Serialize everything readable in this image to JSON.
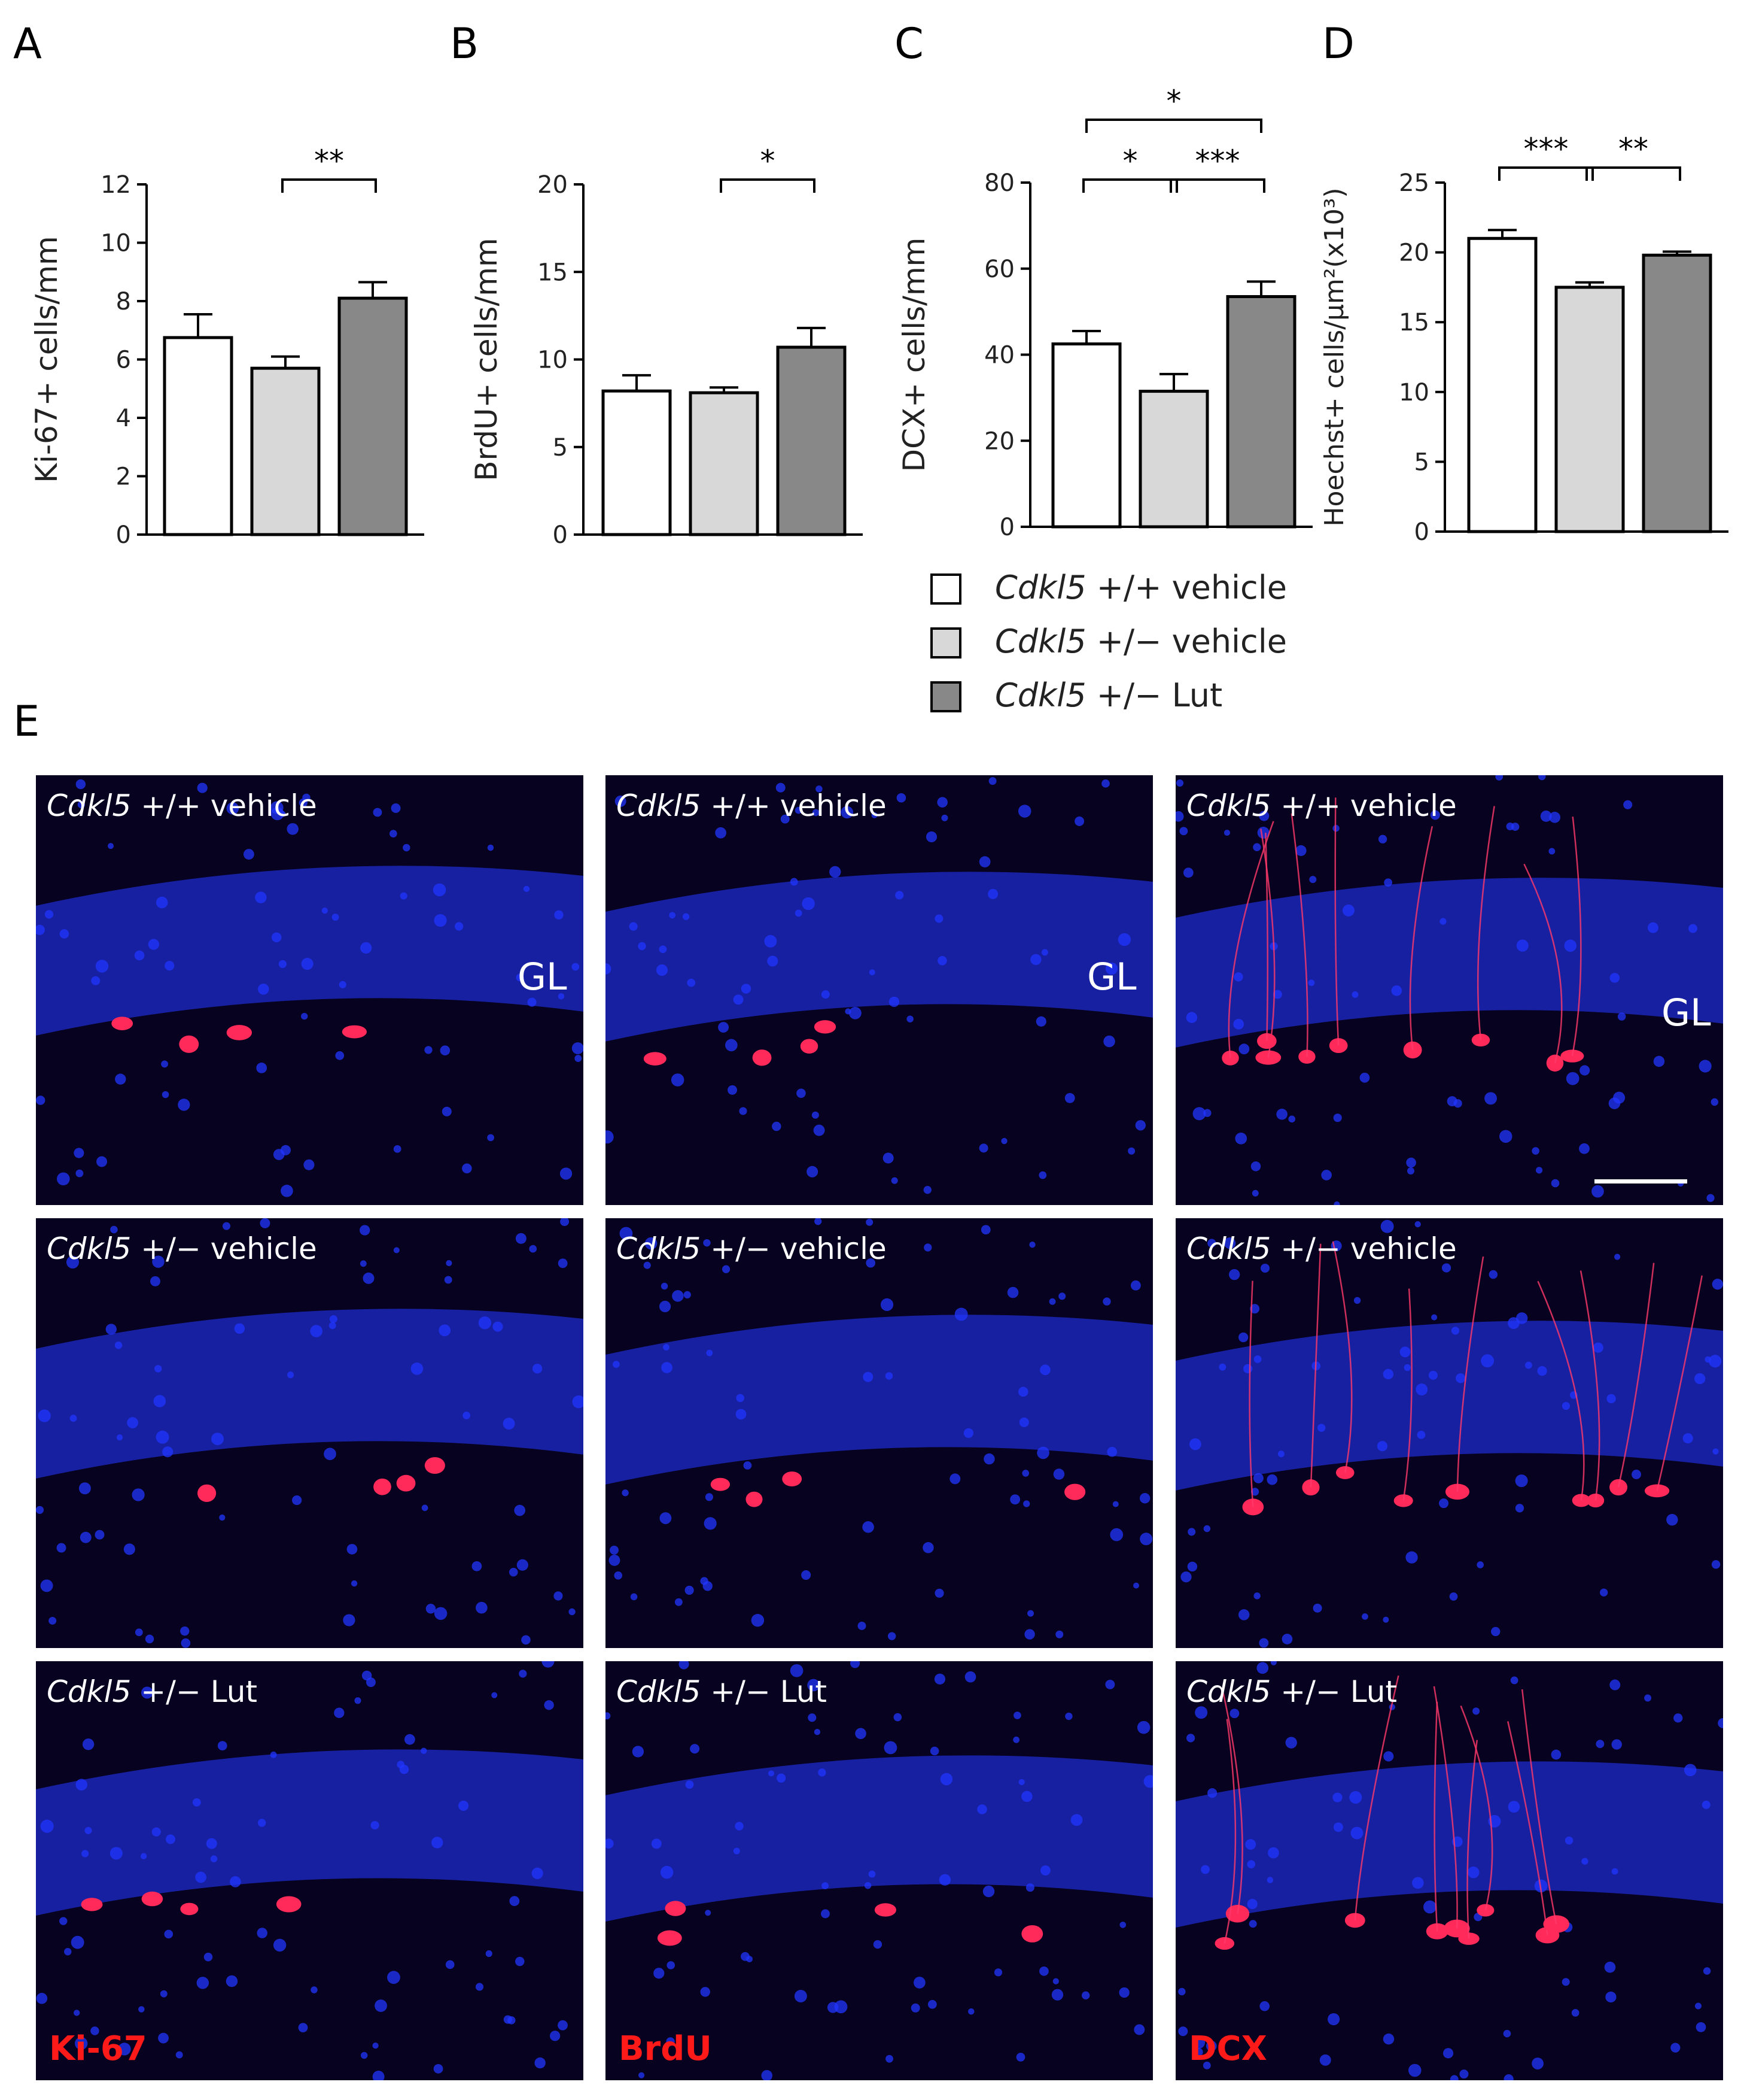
{
  "panel_letters": {
    "a": "A",
    "b": "B",
    "c": "C",
    "d": "D",
    "e": "E"
  },
  "colors": {
    "group1": "#ffffff",
    "group2": "#d8d8d8",
    "group3": "#888888",
    "nuclei": "#1a2fff",
    "marker": "#ff1a4a",
    "stain_label": "#ff1a1a"
  },
  "chart_data": [
    {
      "panel": "A",
      "type": "bar",
      "ylabel": "Ki-67+ cells/mm",
      "ylim": [
        0,
        12
      ],
      "yticks": [
        "0",
        "2",
        "4",
        "6",
        "8",
        "10",
        "12"
      ],
      "values": [
        6.75,
        5.7,
        8.1
      ],
      "errors": [
        0.8,
        0.4,
        0.55
      ],
      "significance": [
        {
          "from": 1,
          "to": 2,
          "label": "**"
        }
      ]
    },
    {
      "panel": "B",
      "type": "bar",
      "ylabel": "BrdU+ cells/mm",
      "ylim": [
        0,
        20
      ],
      "yticks": [
        "0",
        "5",
        "10",
        "15",
        "20"
      ],
      "values": [
        8.2,
        8.1,
        10.7
      ],
      "errors": [
        0.9,
        0.3,
        1.1
      ],
      "significance": [
        {
          "from": 1,
          "to": 2,
          "label": "*"
        }
      ]
    },
    {
      "panel": "C",
      "type": "bar",
      "ylabel": "DCX+ cells/mm",
      "ylim": [
        0,
        80
      ],
      "yticks": [
        "0",
        "20",
        "40",
        "60",
        "80"
      ],
      "values": [
        42.5,
        31.5,
        53.5
      ],
      "errors": [
        3.0,
        4.0,
        3.5
      ],
      "significance": [
        {
          "from": 0,
          "to": 1,
          "label": "*"
        },
        {
          "from": 1,
          "to": 2,
          "label": "***"
        },
        {
          "from": 0,
          "to": 2,
          "label": "*"
        }
      ]
    },
    {
      "panel": "D",
      "type": "bar",
      "ylabel": "Hoechst+ cells/µm²(x10³)",
      "ylim": [
        0,
        25
      ],
      "yticks": [
        "0",
        "5",
        "10",
        "15",
        "20",
        "25"
      ],
      "values": [
        21.0,
        17.5,
        19.8
      ],
      "errors": [
        0.6,
        0.35,
        0.25
      ],
      "significance": [
        {
          "from": 0,
          "to": 1,
          "label": "***"
        },
        {
          "from": 1,
          "to": 2,
          "label": "**"
        }
      ]
    }
  ],
  "legend": [
    {
      "name": "Cdkl5",
      "suffix": " +/+ vehicle"
    },
    {
      "name": "Cdkl5",
      "suffix": " +/− vehicle"
    },
    {
      "name": "Cdkl5",
      "suffix": " +/− Lut"
    }
  ],
  "micrographs": {
    "rows": [
      {
        "name": "Cdkl5",
        "suffix": " +/+ vehicle"
      },
      {
        "name": "Cdkl5",
        "suffix": " +/− vehicle"
      },
      {
        "name": "Cdkl5",
        "suffix": " +/− Lut"
      }
    ],
    "stains": [
      "Ki-67",
      "BrdU",
      "DCX"
    ],
    "layer_label": "GL"
  }
}
